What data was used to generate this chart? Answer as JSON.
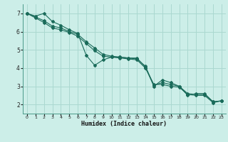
{
  "xlabel": "Humidex (Indice chaleur)",
  "background_color": "#cceee8",
  "grid_color": "#aad8d0",
  "line_color": "#1a6b5a",
  "border_color": "#4a9a8a",
  "xlim": [
    -0.5,
    23.5
  ],
  "ylim": [
    1.5,
    7.5
  ],
  "xticks": [
    0,
    1,
    2,
    3,
    4,
    5,
    6,
    7,
    8,
    9,
    10,
    11,
    12,
    13,
    14,
    15,
    16,
    17,
    18,
    19,
    20,
    21,
    22,
    23
  ],
  "yticks": [
    2,
    3,
    4,
    5,
    6,
    7
  ],
  "series1_x": [
    0,
    1,
    2,
    3,
    4,
    5,
    6,
    7,
    8,
    9,
    10,
    11,
    12,
    13,
    14,
    15,
    16,
    17,
    18,
    19,
    20,
    21,
    22,
    23
  ],
  "series1_y": [
    7.0,
    6.85,
    7.0,
    6.55,
    6.35,
    6.1,
    5.9,
    4.7,
    4.15,
    4.45,
    4.6,
    4.6,
    4.55,
    4.55,
    4.05,
    3.0,
    3.35,
    3.2,
    3.0,
    2.5,
    2.6,
    2.6,
    2.15,
    2.2
  ],
  "series2_x": [
    0,
    1,
    2,
    3,
    4,
    5,
    6,
    7,
    8,
    9,
    10,
    11,
    12,
    13,
    14,
    15,
    16,
    17,
    18,
    19,
    20,
    21,
    22,
    23
  ],
  "series2_y": [
    7.0,
    6.8,
    6.6,
    6.3,
    6.2,
    6.0,
    5.85,
    5.45,
    5.1,
    4.75,
    4.65,
    4.6,
    4.55,
    4.5,
    4.1,
    3.05,
    3.2,
    3.1,
    3.0,
    2.6,
    2.55,
    2.55,
    2.15,
    2.2
  ],
  "series3_x": [
    0,
    1,
    2,
    3,
    4,
    5,
    6,
    7,
    8,
    9,
    10,
    11,
    12,
    13,
    14,
    15,
    16,
    17,
    18,
    19,
    20,
    21,
    22,
    23
  ],
  "series3_y": [
    7.0,
    6.75,
    6.5,
    6.2,
    6.1,
    5.95,
    5.75,
    5.35,
    4.95,
    4.65,
    4.6,
    4.55,
    4.5,
    4.45,
    4.0,
    3.1,
    3.1,
    3.0,
    2.95,
    2.55,
    2.5,
    2.5,
    2.1,
    2.2
  ]
}
